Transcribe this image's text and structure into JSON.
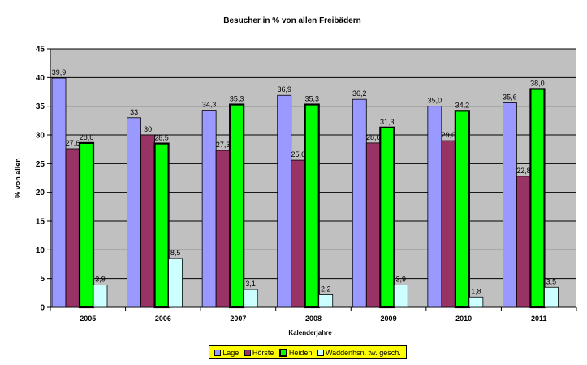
{
  "chart_data": {
    "type": "bar",
    "title": "Besucher in % von allen Freibädern",
    "xlabel": "Kalenderjahre",
    "ylabel": "% von allen",
    "ylim": [
      0,
      45
    ],
    "yticks": [
      "0",
      "5",
      "10",
      "15",
      "20",
      "25",
      "30",
      "35",
      "40",
      "45"
    ],
    "grid": true,
    "legend": "bottom",
    "categories": [
      "2005",
      "2006",
      "2007",
      "2008",
      "2009",
      "2010",
      "2011"
    ],
    "series": [
      {
        "name": "Lage",
        "color": "#9999ff",
        "values": [
          39.9,
          33,
          34.3,
          36.9,
          36.2,
          35.0,
          35.6
        ],
        "labels": [
          "39,9",
          "33",
          "34,3",
          "36,9",
          "36,2",
          "35,0",
          "35,6"
        ]
      },
      {
        "name": "Hörste",
        "color": "#993366",
        "values": [
          27.6,
          30,
          27.3,
          25.6,
          28.6,
          29.0,
          22.8
        ],
        "labels": [
          "27,6",
          "30",
          "27,3",
          "25,6",
          "28,6",
          "29,0",
          "22,8"
        ]
      },
      {
        "name": "Heiden",
        "color": "#00ff00",
        "values": [
          28.6,
          28.5,
          35.3,
          35.3,
          31.3,
          34.2,
          38.0
        ],
        "labels": [
          "28,6",
          "28,5",
          "35,3",
          "35,3",
          "31,3",
          "34,2",
          "38,0"
        ]
      },
      {
        "name": "Waddenhsn. tw. gesch.",
        "color": "#ccffff",
        "values": [
          3.9,
          8.5,
          3.1,
          2.2,
          3.9,
          1.8,
          3.5
        ],
        "labels": [
          "3,9",
          "8,5",
          "3,1",
          "2,2",
          "3,9",
          "1,8",
          "3,5"
        ]
      }
    ]
  }
}
